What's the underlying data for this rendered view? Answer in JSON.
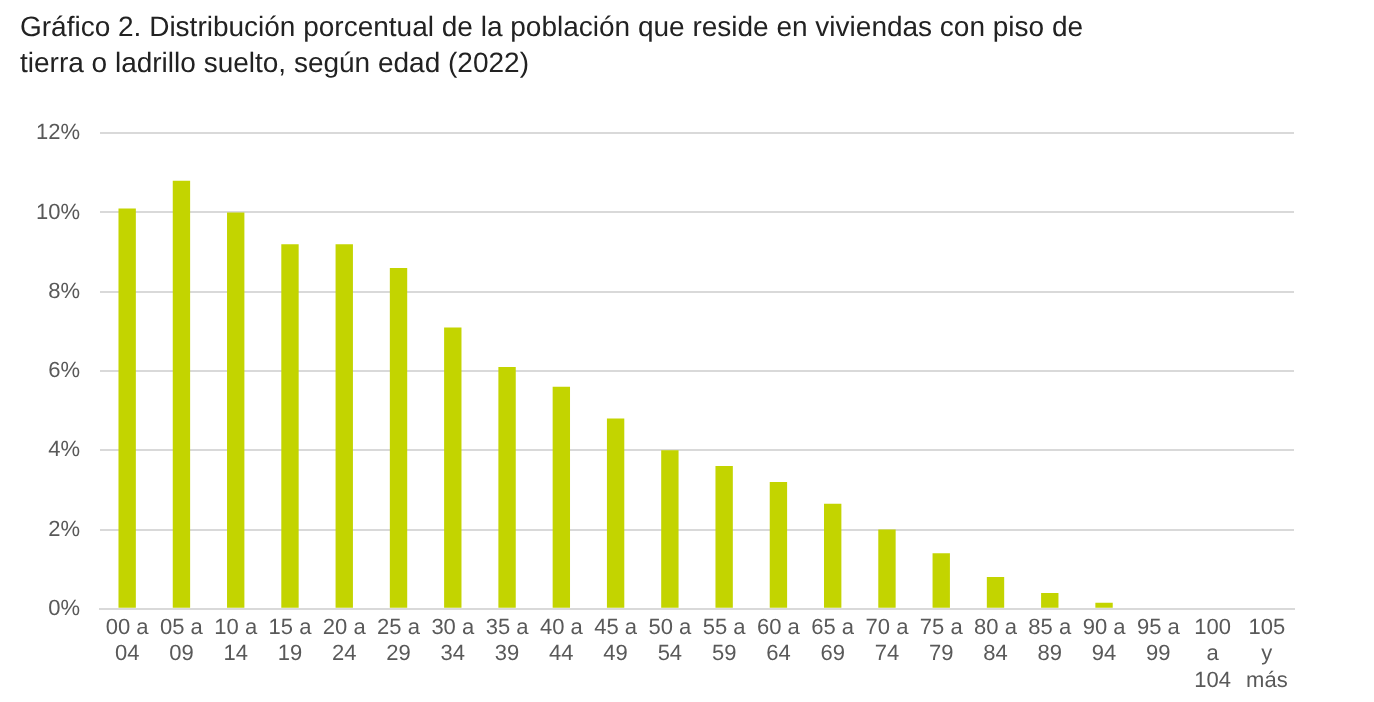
{
  "chart_data": {
    "type": "bar",
    "title": "Gráfico 2. Distribución porcentual de la población que reside en viviendas con piso de tierra o ladrillo suelto, según edad (2022)",
    "categories": [
      "00 a 04",
      "05 a 09",
      "10 a 14",
      "15 a 19",
      "20 a 24",
      "25 a 29",
      "30 a 34",
      "35 a 39",
      "40 a 44",
      "45 a 49",
      "50 a 54",
      "55 a 59",
      "60 a 64",
      "65 a 69",
      "70 a 74",
      "75 a 79",
      "80 a 84",
      "85 a 89",
      "90 a 94",
      "95 a 99",
      "100 a 104",
      "105 y más"
    ],
    "values": [
      10.1,
      10.8,
      10.0,
      9.2,
      9.2,
      8.6,
      7.1,
      6.1,
      5.6,
      4.8,
      4.0,
      3.6,
      3.2,
      2.65,
      2.0,
      1.4,
      0.8,
      0.4,
      0.15,
      0,
      0,
      0
    ],
    "color": "#c3d400",
    "ylim": [
      0,
      12
    ],
    "yticks": [
      {
        "value": 0,
        "label": "0%"
      },
      {
        "value": 2,
        "label": "2%"
      },
      {
        "value": 4,
        "label": "4%"
      },
      {
        "value": 6,
        "label": "6%"
      },
      {
        "value": 8,
        "label": "8%"
      },
      {
        "value": 10,
        "label": "10%"
      },
      {
        "value": 12,
        "label": "12%"
      }
    ],
    "grid": "y"
  }
}
